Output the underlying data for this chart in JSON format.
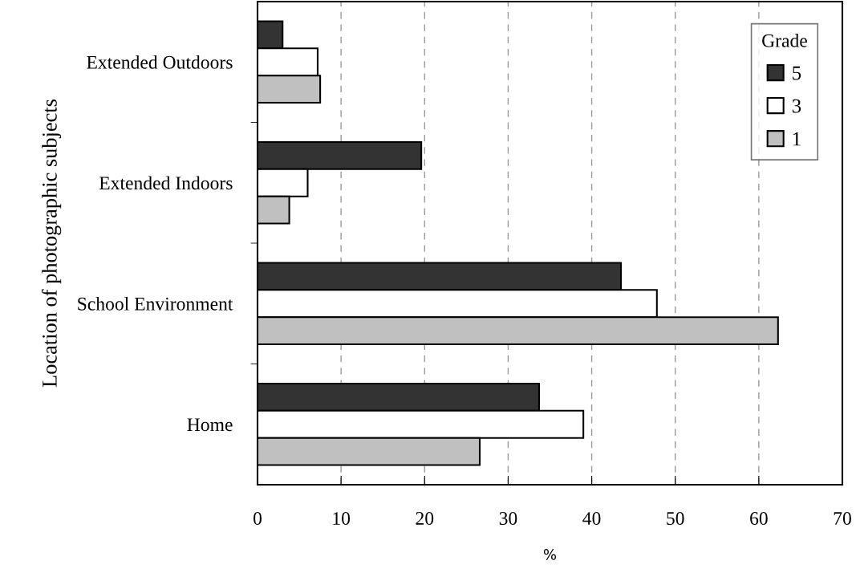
{
  "chart_data": {
    "type": "bar",
    "orientation": "horizontal",
    "categories": [
      "Extended Outdoors",
      "Extended Indoors",
      "School Environment",
      "Home"
    ],
    "series": [
      {
        "name": "5",
        "color": "#333333",
        "values": [
          3.0,
          19.6,
          43.5,
          33.7
        ]
      },
      {
        "name": "3",
        "color": "#ffffff",
        "values": [
          7.2,
          6.0,
          47.8,
          39.0
        ]
      },
      {
        "name": "1",
        "color": "#c0c0c0",
        "values": [
          7.5,
          3.8,
          62.3,
          26.6
        ]
      }
    ],
    "xlabel": "%",
    "ylabel": "Location of photographic subjects",
    "legend_title": "Grade",
    "xlim": [
      0,
      70
    ],
    "xticks": [
      0,
      10,
      20,
      30,
      40,
      50,
      60,
      70
    ],
    "grid": "x",
    "legend": "top right"
  }
}
